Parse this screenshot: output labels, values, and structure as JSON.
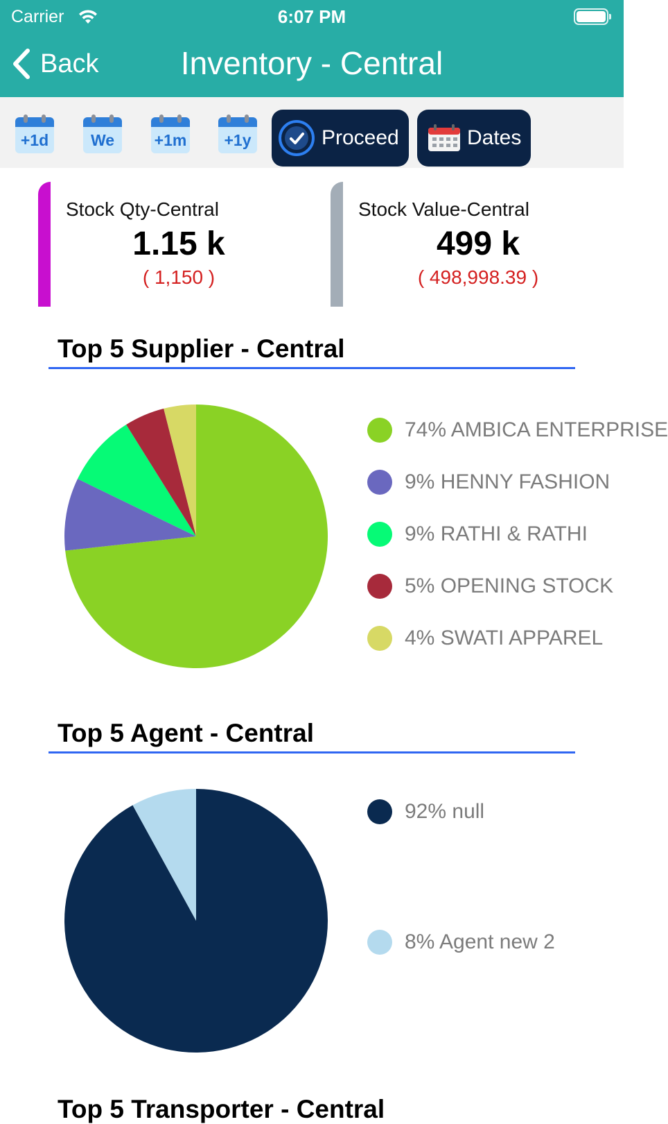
{
  "status_bar": {
    "carrier": "Carrier",
    "time": "6:07 PM"
  },
  "nav": {
    "back_label": "Back",
    "title": "Inventory - Central"
  },
  "toolbar": {
    "quick_dates": [
      "+1d",
      "We",
      "+1m",
      "+1y"
    ],
    "proceed_label": "Proceed",
    "dates_label": "Dates",
    "colors": {
      "button_bg": "#0b2345",
      "calendar_head": "#2f7fd9",
      "calendar_body": "#cbe8fb"
    }
  },
  "kpis": [
    {
      "label": "Stock Qty-Central",
      "value": "1.15 k",
      "raw": "( 1,150 )",
      "accent": "#c80fcf"
    },
    {
      "label": "Stock Value-Central",
      "value": "499 k",
      "raw": "( 498,998.39 )",
      "accent": "#a3adb7"
    }
  ],
  "sections": [
    {
      "title": "Top 5 Supplier - Central"
    },
    {
      "title": "Top 5 Agent - Central"
    }
  ],
  "next_section_title": "Top 5 Transporter - Central",
  "chart_data": [
    {
      "type": "pie",
      "title": "Top 5 Supplier - Central",
      "categories": [
        "74% AMBICA ENTERPRISE",
        "9% HENNY FASHION",
        "9% RATHI & RATHI",
        "5% OPENING STOCK",
        "4% SWATI APPAREL"
      ],
      "values": [
        74,
        9,
        9,
        5,
        4
      ],
      "colors": [
        "#8ad225",
        "#6a68bf",
        "#06fa76",
        "#a72a3b",
        "#d7d965"
      ],
      "legend": "right"
    },
    {
      "type": "pie",
      "title": "Top 5 Agent - Central",
      "categories": [
        "92% null",
        "8% Agent new 2"
      ],
      "values": [
        92,
        8
      ],
      "colors": [
        "#0a2a50",
        "#b4daee"
      ],
      "legend": "right"
    }
  ]
}
